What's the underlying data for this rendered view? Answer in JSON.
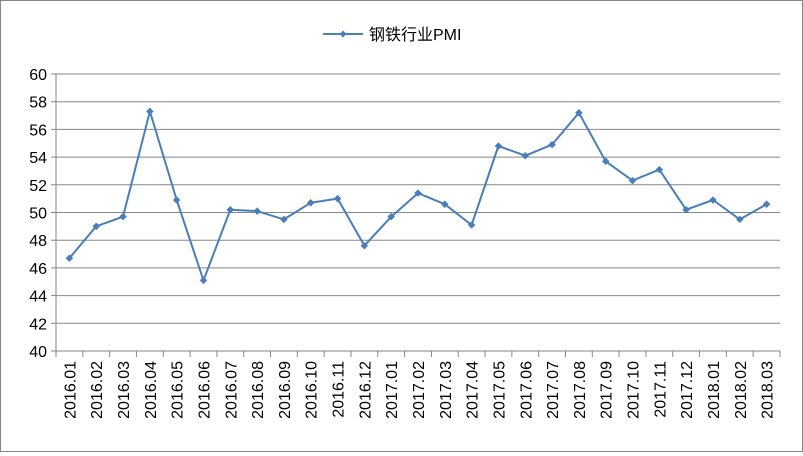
{
  "chart_data": {
    "type": "line",
    "categories": [
      "2016.01",
      "2016.02",
      "2016.03",
      "2016.04",
      "2016.05",
      "2016.06",
      "2016.07",
      "2016.08",
      "2016.09",
      "2016.10",
      "2016.11",
      "2016.12",
      "2017.01",
      "2017.02",
      "2017.03",
      "2017.04",
      "2017.05",
      "2017.06",
      "2017.07",
      "2017.08",
      "2017.09",
      "2017.10",
      "2017.11",
      "2017.12",
      "2018.01",
      "2018.02",
      "2018.03"
    ],
    "series": [
      {
        "name": "钢铁行业PMI",
        "values": [
          46.7,
          49.0,
          49.7,
          57.3,
          50.9,
          45.1,
          50.2,
          50.1,
          49.5,
          50.7,
          51.0,
          47.6,
          49.7,
          51.4,
          50.6,
          49.1,
          54.8,
          54.1,
          54.9,
          57.2,
          53.7,
          52.3,
          53.1,
          50.2,
          50.9,
          49.5,
          50.6
        ]
      }
    ],
    "ylim": [
      40,
      60
    ],
    "yticks": [
      40,
      42,
      44,
      46,
      48,
      50,
      52,
      54,
      56,
      58,
      60
    ],
    "grid": true,
    "legend": "top",
    "colors": {
      "line": "#4a7ebb",
      "grid": "#878787",
      "axis": "#868686",
      "text": "#000000"
    }
  }
}
